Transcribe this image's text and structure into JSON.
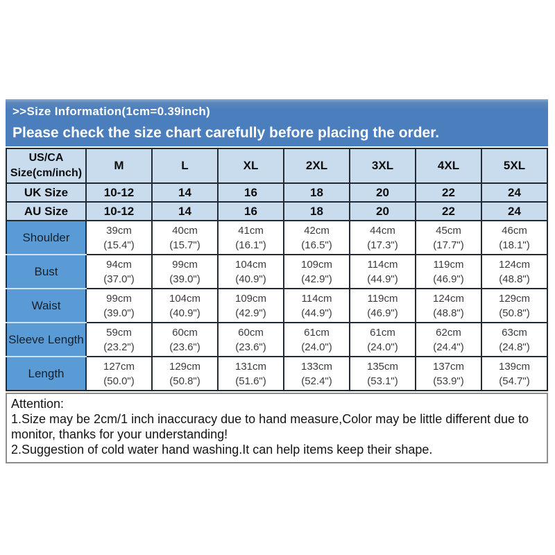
{
  "banner": {
    "title": ">>Size Information(1cm=0.39inch)",
    "subtitle": "Please check the size chart carefully before placing the order."
  },
  "size_table": {
    "corner_header": "US/CA Size(cm/inch)",
    "size_columns": [
      "M",
      "L",
      "XL",
      "2XL",
      "3XL",
      "4XL",
      "5XL"
    ],
    "conversion_rows": [
      {
        "label": "UK Size",
        "values": [
          "10-12",
          "14",
          "16",
          "18",
          "20",
          "22",
          "24"
        ]
      },
      {
        "label": "AU Size",
        "values": [
          "10-12",
          "14",
          "16",
          "18",
          "20",
          "22",
          "24"
        ]
      }
    ],
    "measurement_rows": [
      {
        "label": "Shoulder",
        "cells": [
          [
            "39cm",
            "(15.4\")"
          ],
          [
            "40cm",
            "(15.7\")"
          ],
          [
            "41cm",
            "(16.1\")"
          ],
          [
            "42cm",
            "(16.5\")"
          ],
          [
            "44cm",
            "(17.3\")"
          ],
          [
            "45cm",
            "(17.7\")"
          ],
          [
            "46cm",
            "(18.1\")"
          ]
        ]
      },
      {
        "label": "Bust",
        "cells": [
          [
            "94cm",
            "(37.0\")"
          ],
          [
            "99cm",
            "(39.0\")"
          ],
          [
            "104cm",
            "(40.9\")"
          ],
          [
            "109cm",
            "(42.9\")"
          ],
          [
            "114cm",
            "(44.9\")"
          ],
          [
            "119cm",
            "(46.9\")"
          ],
          [
            "124cm",
            "(48.8\")"
          ]
        ]
      },
      {
        "label": "Waist",
        "cells": [
          [
            "99cm",
            "(39.0\")"
          ],
          [
            "104cm",
            "(40.9\")"
          ],
          [
            "109cm",
            "(42.9\")"
          ],
          [
            "114cm",
            "(44.9\")"
          ],
          [
            "119cm",
            "(46.9\")"
          ],
          [
            "124cm",
            "(48.8\")"
          ],
          [
            "129cm",
            "(50.8\")"
          ]
        ]
      },
      {
        "label": "Sleeve Length",
        "cells": [
          [
            "59cm",
            "(23.2\")"
          ],
          [
            "60cm",
            "(23.6\")"
          ],
          [
            "60cm",
            "(23.6\")"
          ],
          [
            "61cm",
            "(24.0\")"
          ],
          [
            "61cm",
            "(24.0\")"
          ],
          [
            "62cm",
            "(24.4\")"
          ],
          [
            "63cm",
            "(24.8\")"
          ]
        ]
      },
      {
        "label": "Length",
        "cells": [
          [
            "127cm",
            "(50.0\")"
          ],
          [
            "129cm",
            "(50.8\")"
          ],
          [
            "131cm",
            "(51.6\")"
          ],
          [
            "133cm",
            "(52.4\")"
          ],
          [
            "135cm",
            "(53.1\")"
          ],
          [
            "137cm",
            "(53.9\")"
          ],
          [
            "139cm",
            "(54.7\")"
          ]
        ]
      }
    ]
  },
  "attention": {
    "title": "Attention:",
    "notes": [
      "1.Size may be 2cm/1 inch inaccuracy due to hand measure,Color may be little different due to monitor, thanks for your understanding!",
      "2.Suggestion of cold water hand washing.It can help items keep their shape."
    ]
  },
  "colors": {
    "banner_bg": "#4a7ebd",
    "banner_text": "#ffffff",
    "header_row_bg": "#c8dcee",
    "label_col_bg": "#5b9bd5",
    "grid_border": "#232a33",
    "attention_border": "#8d8d8d"
  }
}
